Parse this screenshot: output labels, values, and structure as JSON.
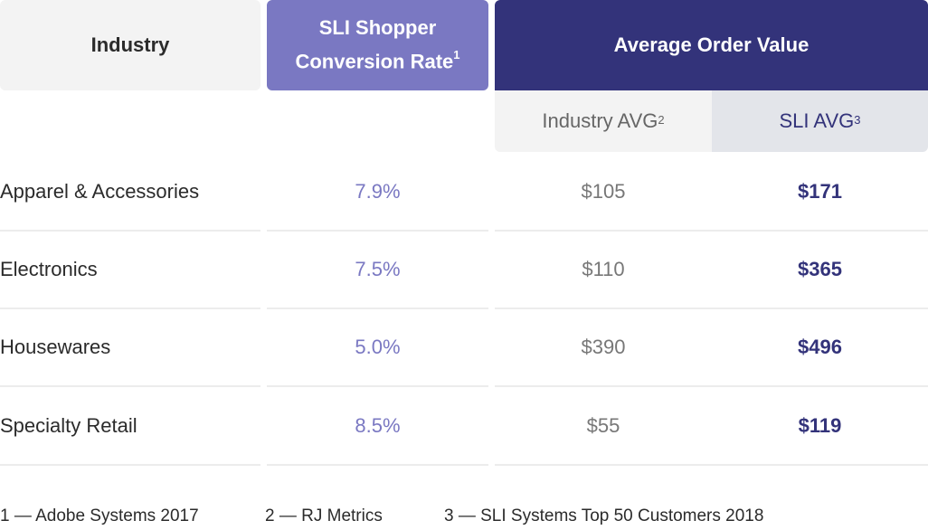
{
  "headers": {
    "industry": "Industry",
    "conversion_line1": "SLI Shopper",
    "conversion_line2": "Conversion Rate",
    "conversion_sup": "1",
    "aov": "Average Order Value",
    "industry_avg": "Industry AVG",
    "industry_avg_sup": "2",
    "sli_avg": "SLI AVG",
    "sli_avg_sup": "3"
  },
  "rows": [
    {
      "industry": "Apparel & Accessories",
      "conversion": "7.9%",
      "industry_avg": "$105",
      "sli_avg": "$171"
    },
    {
      "industry": "Electronics",
      "conversion": "7.5%",
      "industry_avg": "$110",
      "sli_avg": "$365"
    },
    {
      "industry": "Housewares",
      "conversion": "5.0%",
      "industry_avg": "$390",
      "sli_avg": "$496"
    },
    {
      "industry": "Specialty Retail",
      "conversion": "8.5%",
      "industry_avg": "$55",
      "sli_avg": "$119"
    }
  ],
  "footnotes": [
    "1 — Adobe Systems 2017",
    "2 — RJ Metrics",
    "3 — SLI Systems Top 50 Customers 2018"
  ],
  "colors": {
    "accent_purple": "#7a78c2",
    "navy": "#33337a",
    "light_gray": "#f3f3f3"
  }
}
